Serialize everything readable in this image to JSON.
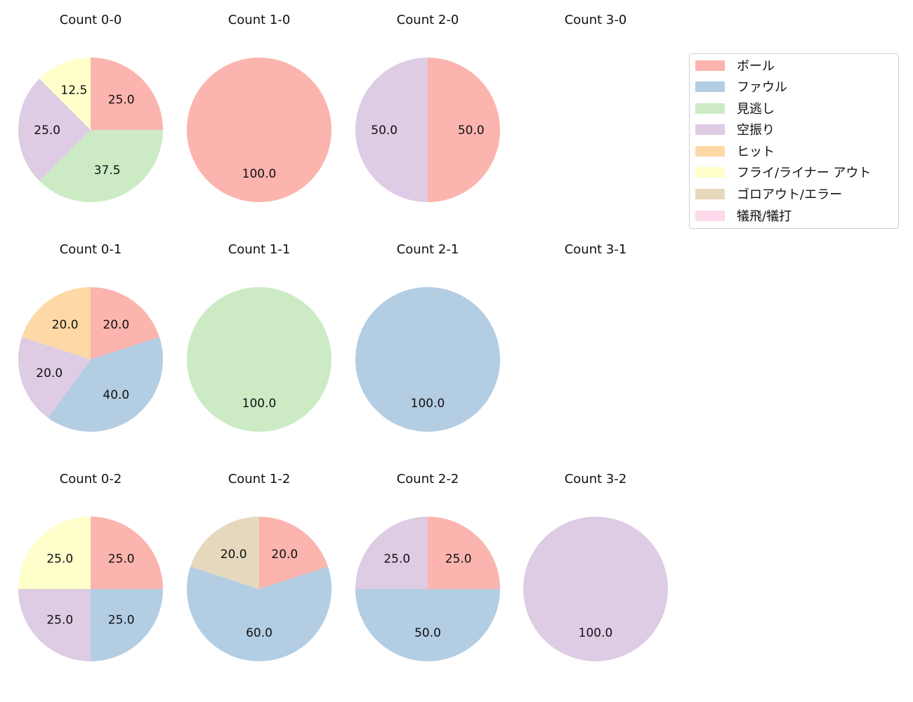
{
  "categories": [
    "ボール",
    "ファウル",
    "見逃し",
    "空振り",
    "ヒット",
    "フライ/ライナー アウト",
    "ゴロアウト/エラー",
    "犠飛/犠打"
  ],
  "colors": {
    "ボール": "#fbb4ae",
    "ファウル": "#b3cde3",
    "見逃し": "#ccebc5",
    "空振り": "#decbe4",
    "ヒット": "#fed9a6",
    "フライ/ライナー アウト": "#ffffcc",
    "ゴロアウト/エラー": "#e5d8bd",
    "犠飛/犠打": "#fddaec"
  },
  "legend": {
    "items": [
      {
        "label": "ボール",
        "color": "#fbb4ae"
      },
      {
        "label": "ファウル",
        "color": "#b3cde3"
      },
      {
        "label": "見逃し",
        "color": "#ccebc5"
      },
      {
        "label": "空振り",
        "color": "#decbe4"
      },
      {
        "label": "ヒット",
        "color": "#fed9a6"
      },
      {
        "label": "フライ/ライナー アウト",
        "color": "#ffffcc"
      },
      {
        "label": "ゴロアウト/エラー",
        "color": "#e5d8bd"
      },
      {
        "label": "犠飛/犠打",
        "color": "#fddaec"
      }
    ]
  },
  "chart_data": [
    {
      "type": "pie",
      "title": "Count 0-0",
      "row": 0,
      "col": 0,
      "slices": [
        {
          "label": "ボール",
          "value": 25.0
        },
        {
          "label": "見逃し",
          "value": 37.5
        },
        {
          "label": "空振り",
          "value": 25.0
        },
        {
          "label": "フライ/ライナー アウト",
          "value": 12.5
        }
      ]
    },
    {
      "type": "pie",
      "title": "Count 1-0",
      "row": 0,
      "col": 1,
      "slices": [
        {
          "label": "ボール",
          "value": 100.0
        }
      ]
    },
    {
      "type": "pie",
      "title": "Count 2-0",
      "row": 0,
      "col": 2,
      "slices": [
        {
          "label": "ボール",
          "value": 50.0
        },
        {
          "label": "空振り",
          "value": 50.0
        }
      ]
    },
    {
      "type": "pie",
      "title": "Count 3-0",
      "row": 0,
      "col": 3,
      "slices": []
    },
    {
      "type": "pie",
      "title": "Count 0-1",
      "row": 1,
      "col": 0,
      "slices": [
        {
          "label": "ボール",
          "value": 20.0
        },
        {
          "label": "ファウル",
          "value": 40.0
        },
        {
          "label": "空振り",
          "value": 20.0
        },
        {
          "label": "ヒット",
          "value": 20.0
        }
      ]
    },
    {
      "type": "pie",
      "title": "Count 1-1",
      "row": 1,
      "col": 1,
      "slices": [
        {
          "label": "見逃し",
          "value": 100.0
        }
      ]
    },
    {
      "type": "pie",
      "title": "Count 2-1",
      "row": 1,
      "col": 2,
      "slices": [
        {
          "label": "ファウル",
          "value": 100.0
        }
      ]
    },
    {
      "type": "pie",
      "title": "Count 3-1",
      "row": 1,
      "col": 3,
      "slices": []
    },
    {
      "type": "pie",
      "title": "Count 0-2",
      "row": 2,
      "col": 0,
      "slices": [
        {
          "label": "ボール",
          "value": 25.0
        },
        {
          "label": "ファウル",
          "value": 25.0
        },
        {
          "label": "空振り",
          "value": 25.0
        },
        {
          "label": "フライ/ライナー アウト",
          "value": 25.0
        }
      ]
    },
    {
      "type": "pie",
      "title": "Count 1-2",
      "row": 2,
      "col": 1,
      "slices": [
        {
          "label": "ボール",
          "value": 20.0
        },
        {
          "label": "ファウル",
          "value": 60.0
        },
        {
          "label": "ゴロアウト/エラー",
          "value": 20.0
        }
      ]
    },
    {
      "type": "pie",
      "title": "Count 2-2",
      "row": 2,
      "col": 2,
      "slices": [
        {
          "label": "ボール",
          "value": 25.0
        },
        {
          "label": "ファウル",
          "value": 50.0
        },
        {
          "label": "空振り",
          "value": 25.0
        }
      ]
    },
    {
      "type": "pie",
      "title": "Count 3-2",
      "row": 2,
      "col": 3,
      "slices": [
        {
          "label": "空振り",
          "value": 100.0
        }
      ]
    }
  ]
}
